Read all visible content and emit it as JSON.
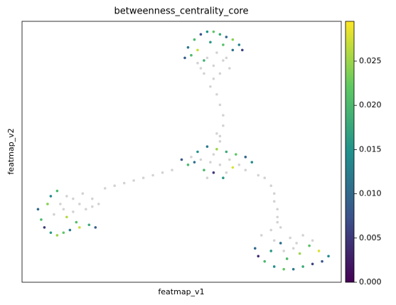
{
  "chart_data": {
    "type": "scatter",
    "title": "betweenness_centrality_core",
    "xlabel": "featmap_v1",
    "ylabel": "featmap_v2",
    "xlim": [
      0,
      100
    ],
    "ylim": [
      0,
      100
    ],
    "colormap": "viridis",
    "na_color": "#d3d3d3",
    "clim": [
      0,
      0.0295
    ],
    "cticks": [
      {
        "value": 0,
        "label": "0.000"
      },
      {
        "value": 0.005,
        "label": "0.005"
      },
      {
        "value": 0.01,
        "label": "0.010"
      },
      {
        "value": 0.015,
        "label": "0.015"
      },
      {
        "value": 0.02,
        "label": "0.020"
      },
      {
        "value": 0.025,
        "label": "0.025"
      }
    ],
    "x": [
      52,
      54,
      56,
      58,
      60,
      62,
      64,
      66,
      68,
      69,
      53,
      55,
      59,
      63,
      66,
      51,
      57,
      55,
      58,
      61,
      60,
      63,
      57,
      60,
      62,
      59,
      61,
      62,
      63,
      63,
      62,
      64,
      56,
      65,
      50,
      52,
      55,
      58,
      61,
      64,
      67,
      70,
      60,
      63,
      57,
      66,
      54,
      72,
      53,
      56,
      59,
      62,
      65,
      68,
      60,
      58,
      64,
      70,
      74,
      62,
      61,
      26,
      29,
      32,
      35,
      38,
      41,
      44,
      47,
      76,
      78,
      79,
      79,
      80,
      80,
      5,
      6,
      7,
      9,
      11,
      13,
      15,
      18,
      21,
      23,
      9,
      11,
      8,
      14,
      17,
      12,
      14,
      16,
      18,
      20,
      22,
      16,
      13,
      19,
      22,
      24,
      10,
      73,
      74,
      76,
      79,
      82,
      85,
      88,
      91,
      94,
      96,
      93,
      87,
      83,
      78,
      90,
      81,
      75,
      78,
      81,
      79,
      84,
      86,
      88,
      91,
      82,
      85,
      80
    ],
    "y": [
      90,
      93,
      95,
      96,
      96,
      95,
      94,
      93,
      91,
      89,
      87,
      89,
      92,
      91,
      89,
      86,
      85,
      84,
      86,
      88,
      83,
      85,
      80,
      78,
      80,
      75,
      72,
      68,
      64,
      60,
      56,
      86,
      82,
      82,
      47,
      45,
      50,
      52,
      51,
      50,
      49,
      48,
      42,
      40,
      43,
      44,
      46,
      46,
      48,
      47,
      46,
      45,
      47,
      45,
      49,
      40,
      42,
      43,
      41,
      54,
      57,
      36,
      37,
      38,
      39,
      40,
      41,
      42,
      43,
      40,
      37,
      34,
      31,
      28,
      25,
      28,
      24,
      21,
      19,
      18,
      19,
      20,
      21,
      22,
      21,
      33,
      35,
      30,
      25,
      23,
      30,
      33,
      32,
      30,
      28,
      29,
      27,
      28,
      34,
      32,
      30,
      26,
      13,
      10,
      8,
      6,
      5,
      5,
      6,
      7,
      8,
      10,
      12,
      11,
      9,
      12,
      14,
      15,
      18,
      20,
      21,
      16,
      17,
      15,
      18,
      16,
      12,
      13,
      23
    ],
    "values": [
      0.012,
      0.02,
      0.008,
      0.015,
      0.022,
      0.018,
      0.01,
      0.024,
      0.013,
      0.006,
      0.02,
      0.027,
      0.016,
      0.021,
      0.011,
      0.009,
      0.019,
      null,
      null,
      null,
      null,
      null,
      null,
      null,
      null,
      null,
      null,
      null,
      null,
      null,
      null,
      null,
      null,
      null,
      0.008,
      0.02,
      0.015,
      0.012,
      0.025,
      0.018,
      0.022,
      0.01,
      0.005,
      0.016,
      0.02,
      0.028,
      0.011,
      0.014,
      null,
      null,
      null,
      null,
      null,
      null,
      null,
      null,
      null,
      null,
      null,
      null,
      null,
      null,
      null,
      null,
      null,
      null,
      null,
      null,
      null,
      null,
      null,
      null,
      null,
      null,
      null,
      0.01,
      0.02,
      0.005,
      0.016,
      0.025,
      0.022,
      0.012,
      0.027,
      0.018,
      0.009,
      0.014,
      0.02,
      0.024,
      0.026,
      0.021,
      null,
      null,
      null,
      null,
      null,
      null,
      null,
      null,
      null,
      null,
      null,
      null,
      0.01,
      0.004,
      0.02,
      0.015,
      0.022,
      0.012,
      0.018,
      0.006,
      0.008,
      0.014,
      0.028,
      0.025,
      0.02,
      0.016,
      0.021,
      0.011,
      null,
      null,
      null,
      null,
      null,
      null,
      null,
      null,
      null,
      null,
      null
    ]
  }
}
